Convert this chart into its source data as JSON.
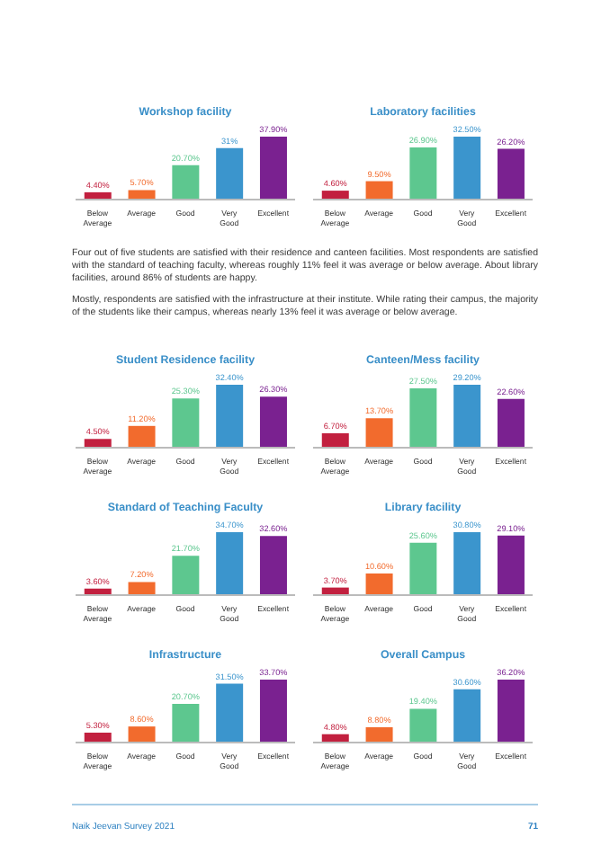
{
  "chart_data": [
    {
      "type": "bar",
      "title": "Workshop facility",
      "categories": [
        "Below Average",
        "Average",
        "Good",
        "Very Good",
        "Excellent"
      ],
      "values": [
        4.4,
        5.7,
        20.7,
        31,
        37.9
      ],
      "colors": [
        "#c2203f",
        "#f26b2d",
        "#5dc78f",
        "#3b95cd",
        "#7a2190"
      ],
      "value_labels": [
        "4.40%",
        "5.70%",
        "20.70%",
        "31%",
        "37.90%"
      ]
    },
    {
      "type": "bar",
      "title": "Laboratory facilities",
      "categories": [
        "Below Average",
        "Average",
        "Good",
        "Very Good",
        "Excellent"
      ],
      "values": [
        4.6,
        9.5,
        26.9,
        32.5,
        26.2
      ],
      "colors": [
        "#c2203f",
        "#f26b2d",
        "#5dc78f",
        "#3b95cd",
        "#7a2190"
      ],
      "value_labels": [
        "4.60%",
        "9.50%",
        "26.90%",
        "32.50%",
        "26.20%"
      ]
    },
    {
      "type": "other",
      "annotations": [
        "Four out of five students are satisfied with their residence and canteen facilities. Most respondents are satisfied with the standard of teaching faculty, whereas roughly 11% feel it was average or below average. About library facilities, around 86% of students are happy.",
        "Mostly, respondents are satisfied with the infrastructure at their institute. While rating their campus, the majority of the students like their campus, whereas nearly 13% feel it was average or below average."
      ]
    },
    {
      "type": "bar",
      "title": "Student Residence facility",
      "categories": [
        "Below Average",
        "Average",
        "Good",
        "Very Good",
        "Excellent"
      ],
      "values": [
        4.5,
        11.2,
        25.3,
        32.4,
        26.3
      ],
      "colors": [
        "#c2203f",
        "#f26b2d",
        "#5dc78f",
        "#3b95cd",
        "#7a2190"
      ],
      "value_labels": [
        "4.50%",
        "11.20%",
        "25.30%",
        "32.40%",
        "26.30%"
      ]
    },
    {
      "type": "bar",
      "title": "Canteen/Mess facility",
      "categories": [
        "Below Average",
        "Average",
        "Good",
        "Very Good",
        "Excellent"
      ],
      "values": [
        6.7,
        13.7,
        27.5,
        29.2,
        22.6
      ],
      "colors": [
        "#c2203f",
        "#f26b2d",
        "#5dc78f",
        "#3b95cd",
        "#7a2190"
      ],
      "value_labels": [
        "6.70%",
        "13.70%",
        "27.50%",
        "29.20%",
        "22.60%"
      ]
    },
    {
      "type": "bar",
      "title": "Standard of Teaching Faculty",
      "categories": [
        "Below Average",
        "Average",
        "Good",
        "Very Good",
        "Excellent"
      ],
      "values": [
        3.6,
        7.2,
        21.7,
        34.7,
        32.6
      ],
      "colors": [
        "#c2203f",
        "#f26b2d",
        "#5dc78f",
        "#3b95cd",
        "#7a2190"
      ],
      "value_labels": [
        "3.60%",
        "7.20%",
        "21.70%",
        "34.70%",
        "32.60%"
      ]
    },
    {
      "type": "bar",
      "title": "Library facility",
      "categories": [
        "Below Average",
        "Average",
        "Good",
        "Very Good",
        "Excellent"
      ],
      "values": [
        3.7,
        10.6,
        25.6,
        30.8,
        29.1
      ],
      "colors": [
        "#c2203f",
        "#f26b2d",
        "#5dc78f",
        "#3b95cd",
        "#7a2190"
      ],
      "value_labels": [
        "3.70%",
        "10.60%",
        "25.60%",
        "30.80%",
        "29.10%"
      ]
    },
    {
      "type": "bar",
      "title": "Infrastructure",
      "categories": [
        "Below Average",
        "Average",
        "Good",
        "Very Good",
        "Excellent"
      ],
      "values": [
        5.3,
        8.6,
        20.7,
        31.5,
        33.7
      ],
      "colors": [
        "#c2203f",
        "#f26b2d",
        "#5dc78f",
        "#3b95cd",
        "#7a2190"
      ],
      "value_labels": [
        "5.30%",
        "8.60%",
        "20.70%",
        "31.50%",
        "33.70%"
      ]
    },
    {
      "type": "bar",
      "title": "Overall Campus",
      "categories": [
        "Below Average",
        "Average",
        "Good",
        "Very Good",
        "Excellent"
      ],
      "values": [
        4.8,
        8.8,
        19.4,
        30.6,
        36.2
      ],
      "colors": [
        "#c2203f",
        "#f26b2d",
        "#5dc78f",
        "#3b95cd",
        "#7a2190"
      ],
      "value_labels": [
        "4.80%",
        "8.80%",
        "19.40%",
        "30.60%",
        "36.20%"
      ]
    },
    {
      "type": "other",
      "annotations": [
        "Naik Jeevan Survey 2021",
        "71"
      ]
    }
  ]
}
